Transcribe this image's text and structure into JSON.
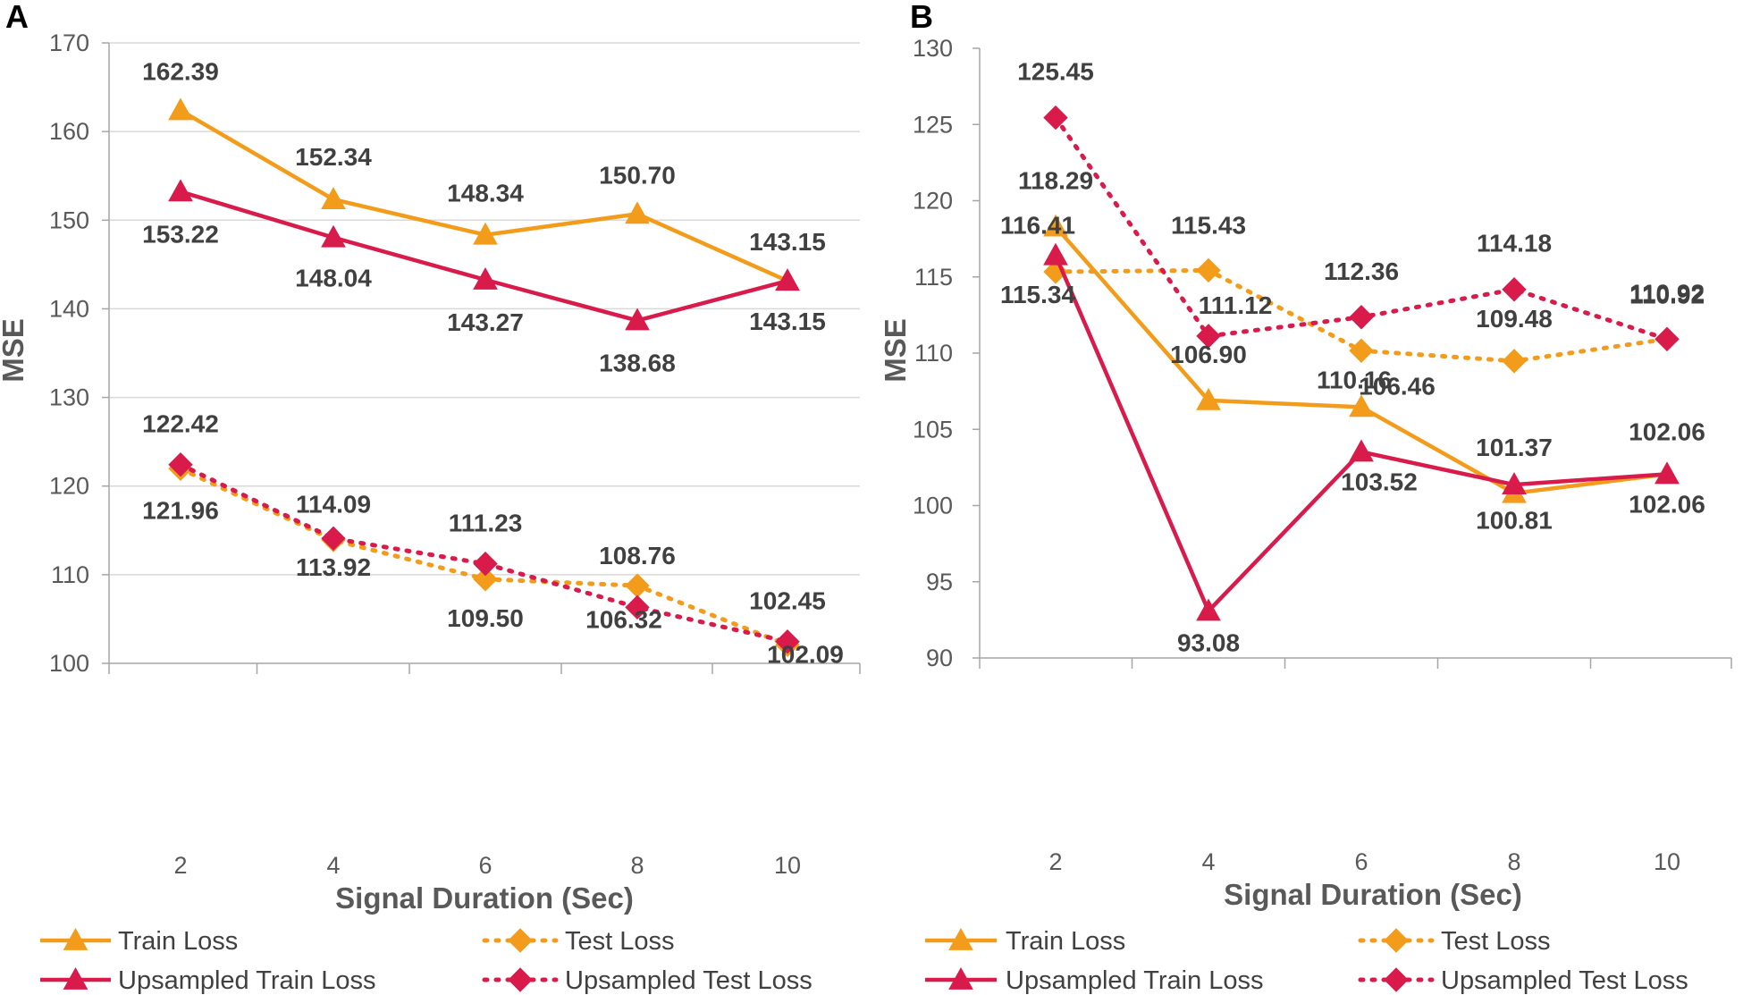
{
  "colors": {
    "orange": "#F39C1B",
    "red": "#D81B4A",
    "grid": "#D9D9D9",
    "axis": "#A6A6A6",
    "text": "#404040",
    "tick": "#595959"
  },
  "chart_data": [
    {
      "type": "line",
      "panel": "A",
      "xlabel": "Signal Duration (Sec)",
      "ylabel": "MSE",
      "categories": [
        "2",
        "4",
        "6",
        "8",
        "10"
      ],
      "ylim": [
        100,
        170
      ],
      "yticks": [
        "100",
        "110",
        "120",
        "130",
        "140",
        "150",
        "160",
        "170"
      ],
      "grid": true,
      "legend_position": "bottom",
      "series": [
        {
          "name": "Train Loss",
          "color": "#F39C1B",
          "dash": "solid",
          "marker": "triangle",
          "values": [
            162.39,
            152.34,
            148.34,
            150.7,
            143.15
          ],
          "labels": [
            "162.39",
            "152.34",
            "148.34",
            "150.70",
            "143.15"
          ]
        },
        {
          "name": "Test Loss",
          "color": "#F39C1B",
          "dash": "dotted",
          "marker": "diamond",
          "values": [
            121.96,
            113.92,
            109.5,
            108.76,
            102.09
          ],
          "labels": [
            "121.96",
            "113.92",
            "109.50",
            "108.76",
            "102.09"
          ]
        },
        {
          "name": "Upsampled Train Loss",
          "color": "#D81B4A",
          "dash": "solid",
          "marker": "triangle",
          "values": [
            153.22,
            148.04,
            143.27,
            138.68,
            143.15
          ],
          "labels": [
            "153.22",
            "148.04",
            "143.27",
            "138.68",
            "143.15"
          ]
        },
        {
          "name": "Upsampled Test Loss",
          "color": "#D81B4A",
          "dash": "dotted",
          "marker": "diamond",
          "values": [
            122.42,
            114.09,
            111.23,
            106.32,
            102.45
          ],
          "labels": [
            "122.42",
            "114.09",
            "111.23",
            "106.32",
            "102.45"
          ]
        }
      ]
    },
    {
      "type": "line",
      "panel": "B",
      "xlabel": "Signal Duration (Sec)",
      "ylabel": "MSE",
      "categories": [
        "2",
        "4",
        "6",
        "8",
        "10"
      ],
      "ylim": [
        90,
        130
      ],
      "yticks": [
        "90",
        "95",
        "100",
        "105",
        "110",
        "115",
        "120",
        "125",
        "130"
      ],
      "grid": false,
      "legend_position": "bottom",
      "series": [
        {
          "name": "Train Loss",
          "color": "#F39C1B",
          "dash": "solid",
          "marker": "triangle",
          "values": [
            118.29,
            106.9,
            106.46,
            100.81,
            102.06
          ],
          "labels": [
            "118.29",
            "106.90",
            "106.46",
            "100.81",
            "102.06"
          ]
        },
        {
          "name": "Test Loss",
          "color": "#F39C1B",
          "dash": "dotted",
          "marker": "diamond",
          "values": [
            115.34,
            115.43,
            110.16,
            109.48,
            110.92
          ],
          "labels": [
            "115.34",
            "115.43",
            "110.16",
            "109.48",
            "110.92"
          ]
        },
        {
          "name": "Upsampled Train Loss",
          "color": "#D81B4A",
          "dash": "solid",
          "marker": "triangle",
          "values": [
            116.41,
            93.08,
            103.52,
            101.37,
            102.06
          ],
          "labels": [
            "116.41",
            "93.08",
            "103.52",
            "101.37",
            "102.06"
          ]
        },
        {
          "name": "Upsampled Test Loss",
          "color": "#D81B4A",
          "dash": "dotted",
          "marker": "diamond",
          "values": [
            125.45,
            111.12,
            112.36,
            114.18,
            110.92
          ],
          "labels": [
            "125.45",
            "111.12",
            "112.36",
            "114.18",
            "110.92"
          ]
        }
      ]
    }
  ]
}
